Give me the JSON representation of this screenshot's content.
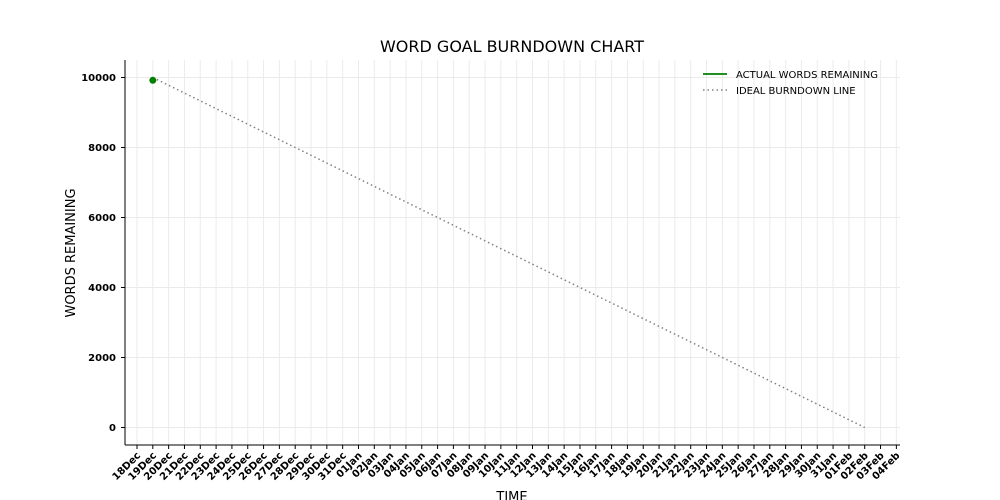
{
  "chart_data": {
    "type": "line",
    "title": "WORD GOAL BURNDOWN CHART",
    "xlabel": "TIME",
    "ylabel": "WORDS REMAINING",
    "x_tick_labels": [
      "18Dec",
      "19Dec",
      "20Dec",
      "21Dec",
      "22Dec",
      "23Dec",
      "24Dec",
      "25Dec",
      "26Dec",
      "27Dec",
      "28Dec",
      "29Dec",
      "30Dec",
      "31Dec",
      "01Jan",
      "02Jan",
      "03Jan",
      "04Jan",
      "05Jan",
      "06Jan",
      "07Jan",
      "08Jan",
      "09Jan",
      "10Jan",
      "11Jan",
      "12Jan",
      "13Jan",
      "14Jan",
      "15Jan",
      "16Jan",
      "17Jan",
      "18Jan",
      "19Jan",
      "20Jan",
      "21Jan",
      "22Jan",
      "23Jan",
      "24Jan",
      "25Jan",
      "26Jan",
      "27Jan",
      "28Jan",
      "29Jan",
      "30Jan",
      "31Jan",
      "01Feb",
      "02Feb",
      "03Feb",
      "04Feb"
    ],
    "y_ticks": [
      0,
      2000,
      4000,
      6000,
      8000,
      10000
    ],
    "ylim": [
      -500,
      10500
    ],
    "grid": true,
    "legend_position": "top-right",
    "series": [
      {
        "name": "ACTUAL WORDS REMAINING",
        "style": "solid",
        "color": "#008000",
        "points": [
          {
            "x": "19Dec",
            "y": 9920
          }
        ]
      },
      {
        "name": "IDEAL BURNDOWN LINE",
        "style": "dotted",
        "color": "#808080",
        "points": [
          {
            "x": "19Dec",
            "y": 10000
          },
          {
            "x": "02Feb",
            "y": 0
          }
        ]
      }
    ]
  }
}
